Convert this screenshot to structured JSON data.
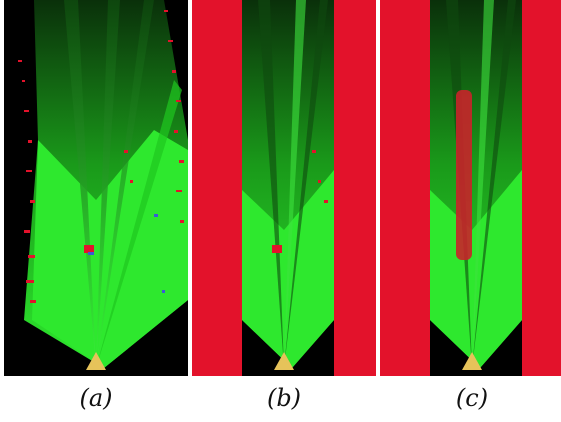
{
  "captions": {
    "a": "(a)",
    "b": "(b)",
    "c": "(c)"
  },
  "colors": {
    "free_space": "#2ee82e",
    "occupied": "#e3122b",
    "background": "#000000",
    "sensor": "#e6c35a",
    "separator": "#ffffff"
  },
  "panels": [
    {
      "id": "a",
      "content": "raw-occupancy-grid"
    },
    {
      "id": "b",
      "content": "grid-with-side-masks"
    },
    {
      "id": "c",
      "content": "grid-with-side-masks-and-obstacle"
    }
  ]
}
